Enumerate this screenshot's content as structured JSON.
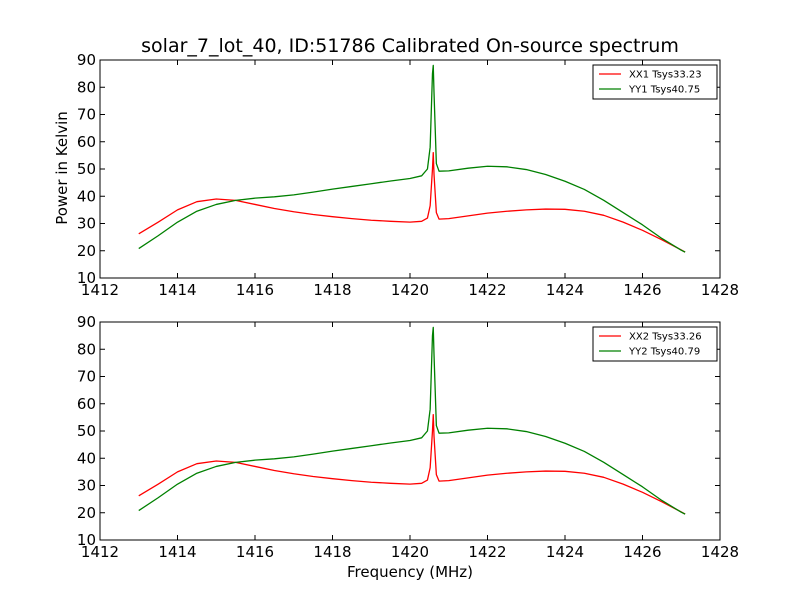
{
  "figure": {
    "title": "solar_7_lot_40, ID:51786 Calibrated On-source spectrum",
    "ylabel": "Power in Kelvin",
    "xlabel": "Frequency (MHz)"
  },
  "chart_data": [
    {
      "type": "line",
      "title": "solar_7_lot_40, ID:51786 Calibrated On-source spectrum",
      "xlabel": "",
      "ylabel": "Power in Kelvin",
      "xlim": [
        1412,
        1428
      ],
      "ylim": [
        10,
        90
      ],
      "x_ticks": [
        1412,
        1414,
        1416,
        1418,
        1420,
        1422,
        1424,
        1426,
        1428
      ],
      "y_ticks": [
        10,
        20,
        30,
        40,
        50,
        60,
        70,
        80,
        90
      ],
      "legend": "top-right",
      "grid": false,
      "series": [
        {
          "name": "XX1 Tsys33.23",
          "color": "#ff0000",
          "x": [
            1413.0,
            1413.5,
            1414.0,
            1414.5,
            1415.0,
            1415.5,
            1416.0,
            1416.5,
            1417.0,
            1417.5,
            1418.0,
            1418.5,
            1419.0,
            1419.5,
            1420.0,
            1420.3,
            1420.45,
            1420.52,
            1420.58,
            1420.6,
            1420.62,
            1420.68,
            1420.75,
            1421.0,
            1421.5,
            1422.0,
            1422.5,
            1423.0,
            1423.5,
            1424.0,
            1424.5,
            1425.0,
            1425.5,
            1426.0,
            1426.5,
            1427.0,
            1427.1
          ],
          "y": [
            26.2,
            30.5,
            35.0,
            38.0,
            39.0,
            38.5,
            37.0,
            35.5,
            34.3,
            33.3,
            32.5,
            31.8,
            31.2,
            30.8,
            30.5,
            30.8,
            32.0,
            36.5,
            50.0,
            56.0,
            48.0,
            34.0,
            31.6,
            31.8,
            32.8,
            33.8,
            34.5,
            35.0,
            35.3,
            35.2,
            34.5,
            33.0,
            30.5,
            27.5,
            24.0,
            20.3,
            19.5
          ]
        },
        {
          "name": "YY1 Tsys40.75",
          "color": "#008000",
          "x": [
            1413.0,
            1413.5,
            1414.0,
            1414.5,
            1415.0,
            1415.5,
            1416.0,
            1416.5,
            1417.0,
            1417.5,
            1418.0,
            1418.5,
            1419.0,
            1419.5,
            1420.0,
            1420.3,
            1420.45,
            1420.52,
            1420.58,
            1420.6,
            1420.62,
            1420.68,
            1420.75,
            1421.0,
            1421.5,
            1422.0,
            1422.5,
            1423.0,
            1423.5,
            1424.0,
            1424.5,
            1425.0,
            1425.5,
            1426.0,
            1426.5,
            1427.0,
            1427.1
          ],
          "y": [
            20.8,
            25.5,
            30.5,
            34.5,
            37.0,
            38.5,
            39.3,
            39.8,
            40.5,
            41.5,
            42.6,
            43.6,
            44.6,
            45.6,
            46.5,
            47.5,
            50.0,
            58.0,
            85.0,
            88.0,
            78.0,
            52.0,
            49.2,
            49.3,
            50.3,
            51.0,
            50.8,
            49.8,
            48.0,
            45.5,
            42.5,
            38.5,
            34.0,
            29.5,
            24.5,
            20.2,
            19.5
          ]
        }
      ]
    },
    {
      "type": "line",
      "title": "",
      "xlabel": "Frequency (MHz)",
      "ylabel": "",
      "xlim": [
        1412,
        1428
      ],
      "ylim": [
        10,
        90
      ],
      "x_ticks": [
        1412,
        1414,
        1416,
        1418,
        1420,
        1422,
        1424,
        1426,
        1428
      ],
      "y_ticks": [
        10,
        20,
        30,
        40,
        50,
        60,
        70,
        80,
        90
      ],
      "legend": "top-right",
      "grid": false,
      "series": [
        {
          "name": "XX2 Tsys33.26",
          "color": "#ff0000",
          "x": [
            1413.0,
            1413.5,
            1414.0,
            1414.5,
            1415.0,
            1415.5,
            1416.0,
            1416.5,
            1417.0,
            1417.5,
            1418.0,
            1418.5,
            1419.0,
            1419.5,
            1420.0,
            1420.3,
            1420.45,
            1420.52,
            1420.58,
            1420.6,
            1420.62,
            1420.68,
            1420.75,
            1421.0,
            1421.5,
            1422.0,
            1422.5,
            1423.0,
            1423.5,
            1424.0,
            1424.5,
            1425.0,
            1425.5,
            1426.0,
            1426.5,
            1427.0,
            1427.1
          ],
          "y": [
            26.2,
            30.5,
            35.0,
            38.0,
            39.0,
            38.5,
            37.0,
            35.5,
            34.3,
            33.3,
            32.5,
            31.8,
            31.2,
            30.8,
            30.5,
            30.8,
            32.0,
            36.5,
            50.0,
            56.0,
            48.0,
            34.0,
            31.6,
            31.8,
            32.8,
            33.8,
            34.5,
            35.0,
            35.3,
            35.2,
            34.5,
            33.0,
            30.5,
            27.5,
            24.0,
            20.3,
            19.5
          ]
        },
        {
          "name": "YY2 Tsys40.79",
          "color": "#008000",
          "x": [
            1413.0,
            1413.5,
            1414.0,
            1414.5,
            1415.0,
            1415.5,
            1416.0,
            1416.5,
            1417.0,
            1417.5,
            1418.0,
            1418.5,
            1419.0,
            1419.5,
            1420.0,
            1420.3,
            1420.45,
            1420.52,
            1420.58,
            1420.6,
            1420.62,
            1420.68,
            1420.75,
            1421.0,
            1421.5,
            1422.0,
            1422.5,
            1423.0,
            1423.5,
            1424.0,
            1424.5,
            1425.0,
            1425.5,
            1426.0,
            1426.5,
            1427.0,
            1427.1
          ],
          "y": [
            20.8,
            25.5,
            30.5,
            34.5,
            37.0,
            38.5,
            39.3,
            39.8,
            40.5,
            41.5,
            42.6,
            43.6,
            44.6,
            45.6,
            46.5,
            47.5,
            50.0,
            58.0,
            85.0,
            88.0,
            78.0,
            52.0,
            49.2,
            49.3,
            50.3,
            51.0,
            50.8,
            49.8,
            48.0,
            45.5,
            42.5,
            38.5,
            34.0,
            29.5,
            24.5,
            20.2,
            19.5
          ]
        }
      ]
    }
  ]
}
